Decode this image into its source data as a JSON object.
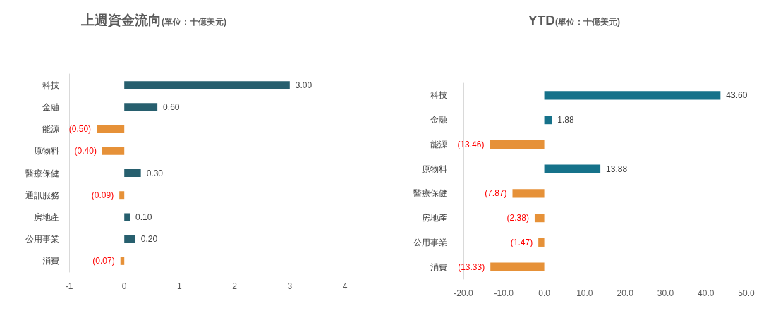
{
  "chart_data": [
    {
      "type": "bar",
      "orientation": "horizontal",
      "title": "上週資金流向",
      "subtitle": "(單位：十億美元)",
      "categories": [
        "科技",
        "金融",
        "能源",
        "原物料",
        "醫療保健",
        "通訊服務",
        "房地產",
        "公用事業",
        "消費"
      ],
      "values": [
        3.0,
        0.6,
        -0.5,
        -0.4,
        0.3,
        -0.09,
        0.1,
        0.2,
        -0.07
      ],
      "colors": [
        "#275f6e",
        "#275f6e",
        "#e69138",
        "#e69138",
        "#275f6e",
        "#e69138",
        "#275f6e",
        "#275f6e",
        "#e69138"
      ],
      "value_labels": [
        "3.00",
        "0.60",
        "(0.50)",
        "(0.40)",
        "0.30",
        "(0.09)",
        "0.10",
        "0.20",
        "(0.07)"
      ],
      "xlim": [
        -1,
        4
      ],
      "xticks": [
        -1,
        0,
        1,
        2,
        3,
        4
      ]
    },
    {
      "type": "bar",
      "orientation": "horizontal",
      "title": "YTD",
      "subtitle": "(單位：十億美元)",
      "categories": [
        "科技",
        "金融",
        "能源",
        "原物料",
        "醫療保健",
        "房地產",
        "公用事業",
        "消費"
      ],
      "values": [
        43.6,
        1.88,
        -13.46,
        13.88,
        -7.87,
        -2.38,
        -1.47,
        -13.33
      ],
      "colors": [
        "#16728a",
        "#16728a",
        "#e69138",
        "#16728a",
        "#e69138",
        "#e69138",
        "#e69138",
        "#e69138"
      ],
      "value_labels": [
        "43.60",
        "1.88",
        "(13.46)",
        "13.88",
        "(7.87)",
        "(2.38)",
        "(1.47)",
        "(13.33)"
      ],
      "xlim": [
        -20,
        50
      ],
      "xticks": [
        {
          "value": -20,
          "label": "-20.0"
        },
        {
          "value": -10,
          "label": "-10.0"
        },
        {
          "value": 0,
          "label": "0.0"
        },
        {
          "value": 10,
          "label": "10.0"
        },
        {
          "value": 20,
          "label": "20.0"
        },
        {
          "value": 30,
          "label": "30.0"
        },
        {
          "value": 40,
          "label": "40.0"
        },
        {
          "value": 50,
          "label": "50.0"
        }
      ]
    }
  ]
}
